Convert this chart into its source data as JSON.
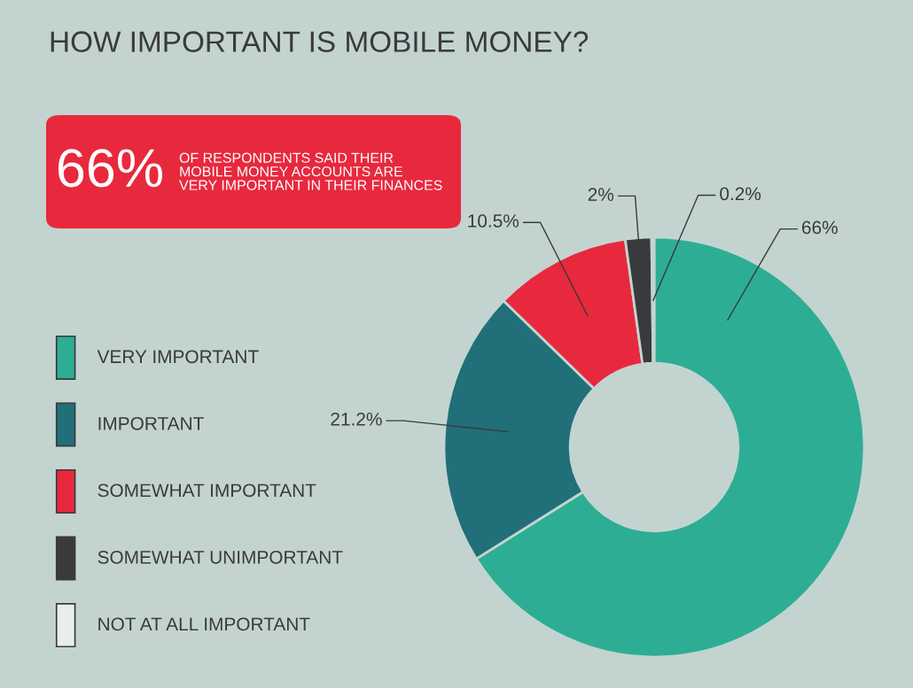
{
  "chart_data": {
    "type": "donut",
    "title": "HOW IMPORTANT IS MOBILE MONEY?",
    "categories": [
      "VERY IMPORTANT",
      "IMPORTANT",
      "SOMEWHAT IMPORTANT",
      "SOMEWHAT UNIMPORTANT",
      "NOT AT ALL IMPORTANT"
    ],
    "values": [
      66,
      21.2,
      10.5,
      2,
      0.2
    ],
    "colors": [
      "#2dae94",
      "#216f78",
      "#e8293d",
      "#3a3a3c",
      "#e8eeec"
    ],
    "value_labels": [
      "66%",
      "21.2%",
      "10.5%",
      "2%",
      "0.2%"
    ],
    "annotations": [
      "66%",
      "OF RESPONDENTS SAID THEIR\nMOBILE MONEY ACCOUNTS ARE\nVERY IMPORTANT IN THEIR FINANCES"
    ],
    "legend": "left"
  }
}
